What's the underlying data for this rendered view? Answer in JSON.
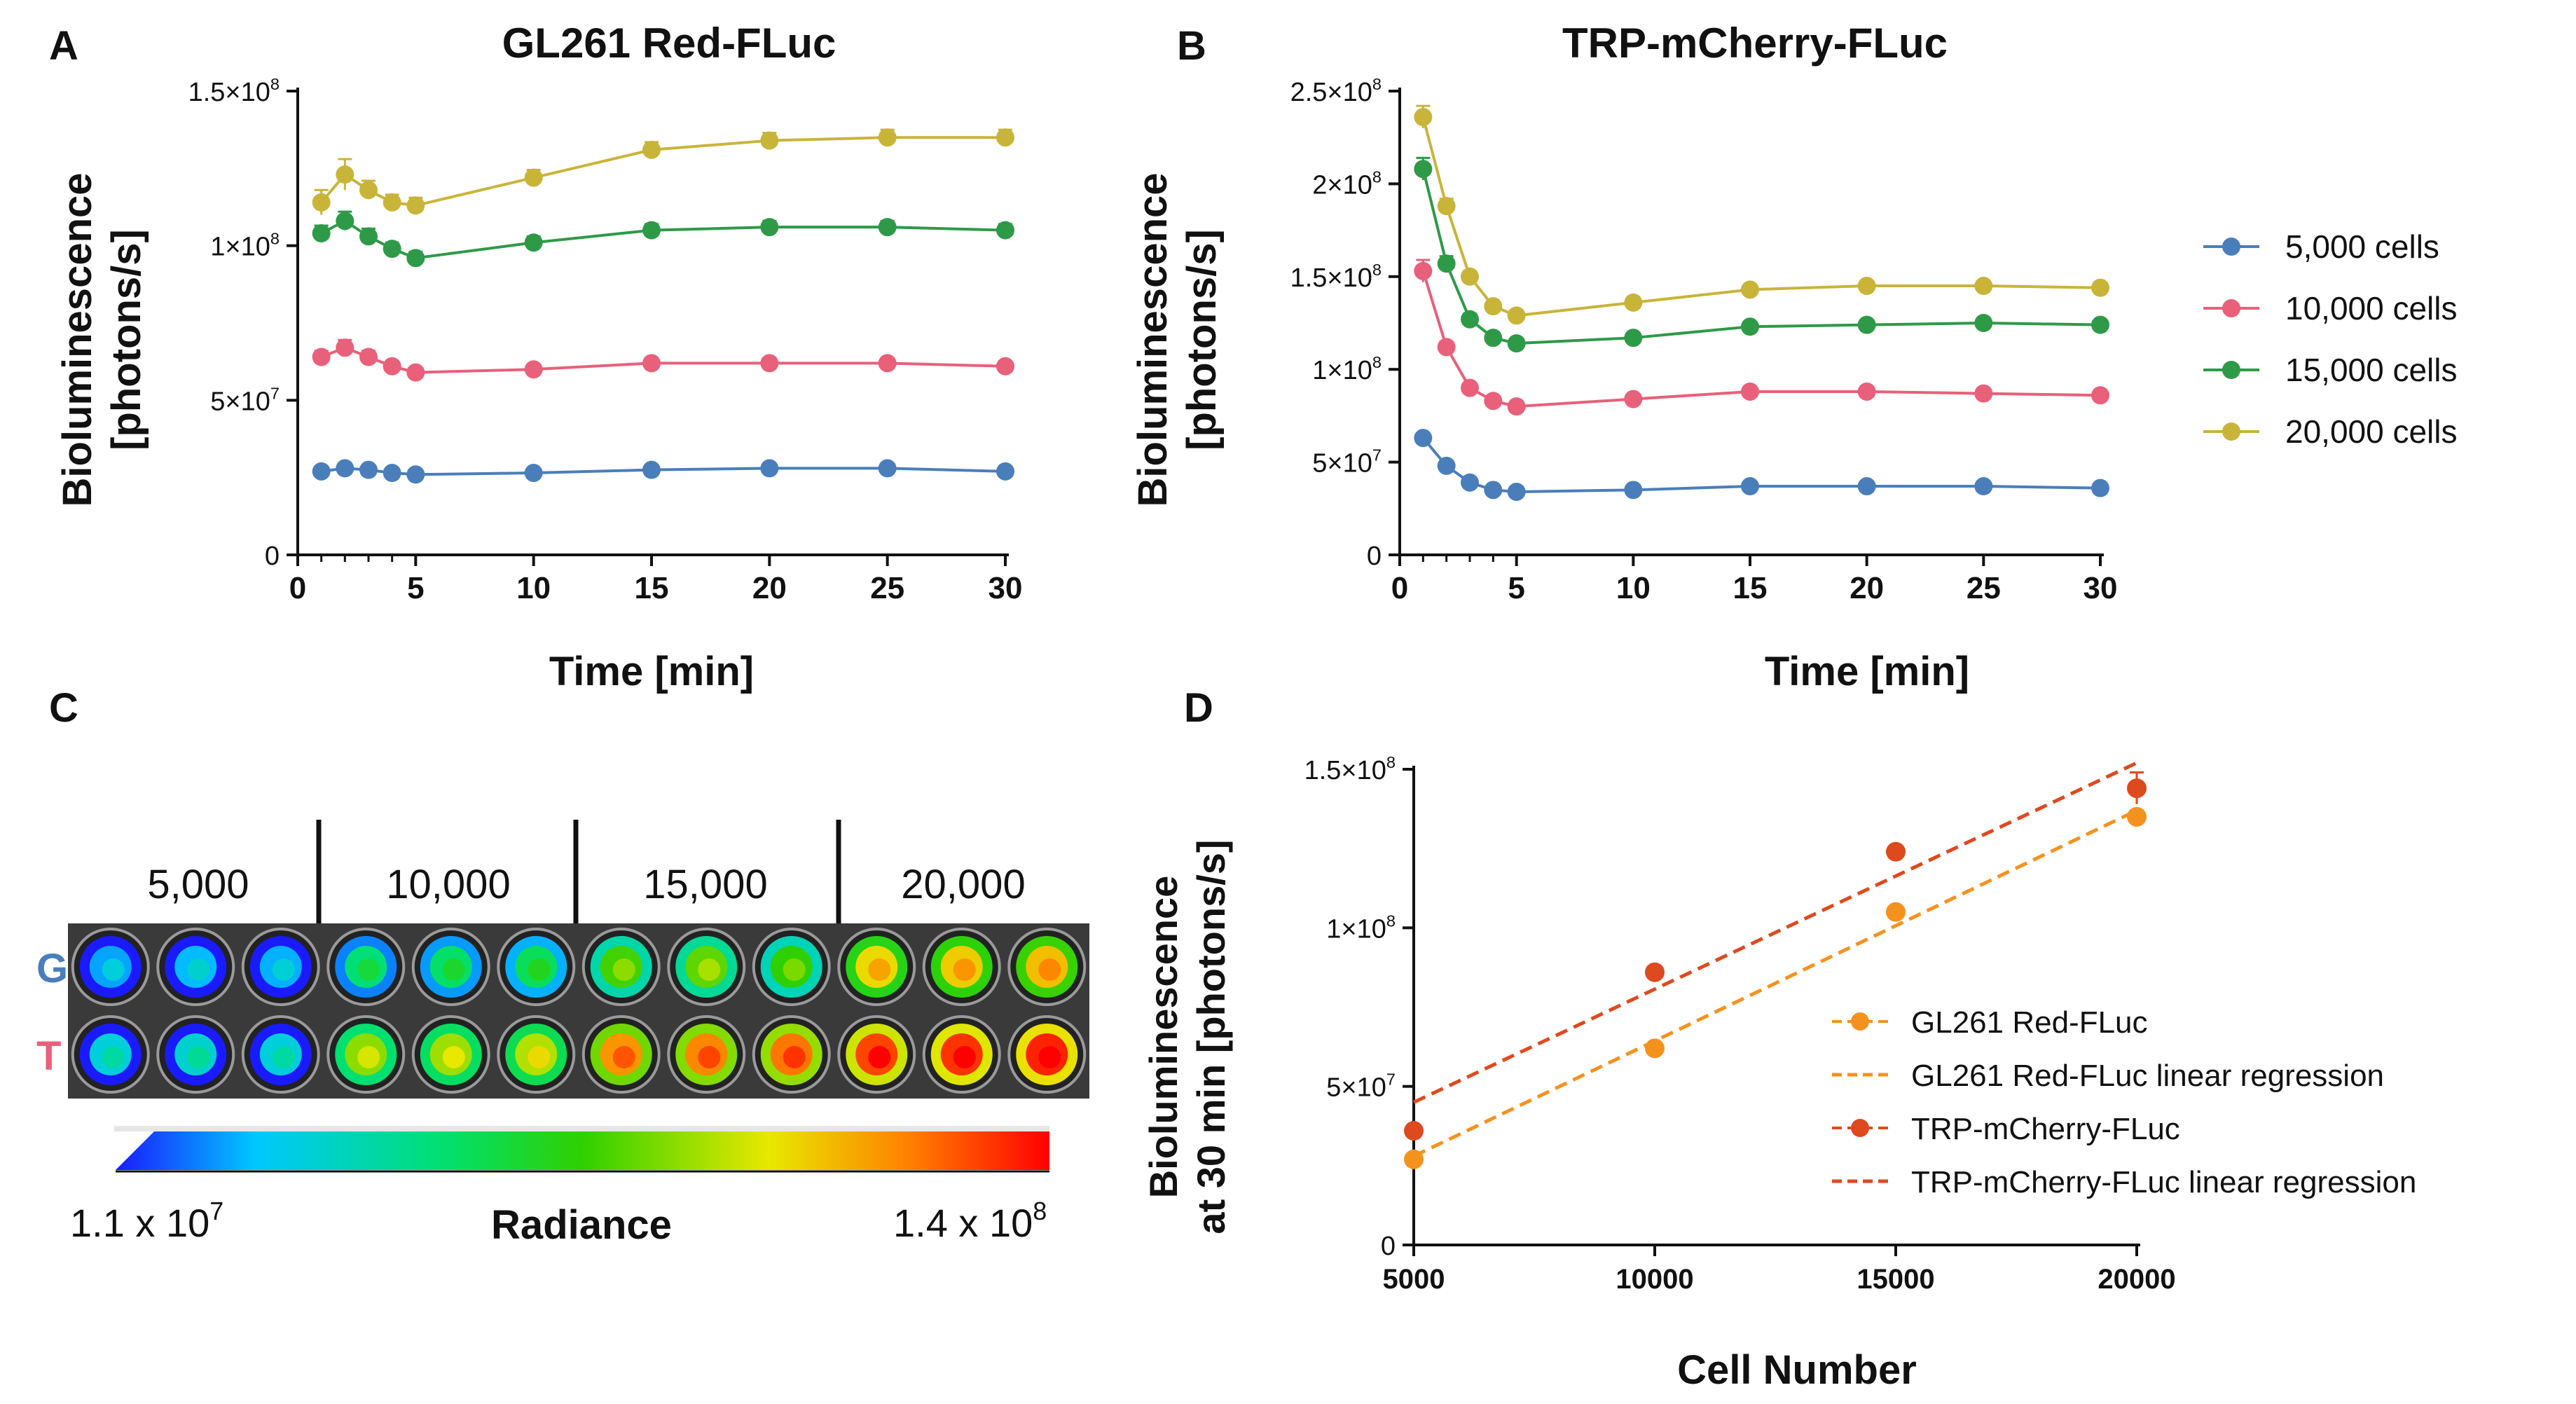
{
  "panel_letters": {
    "a": "A",
    "b": "B",
    "c": "C",
    "d": "D"
  },
  "legend_time": {
    "items": [
      {
        "label": "5,000 cells",
        "color": "#4a7ebb"
      },
      {
        "label": "10,000 cells",
        "color": "#e8607a"
      },
      {
        "label": "15,000 cells",
        "color": "#2e9a48"
      },
      {
        "label": "20,000 cells",
        "color": "#c9b43a"
      }
    ]
  },
  "chart_data": [
    {
      "id": "A",
      "type": "line",
      "title": "GL261 Red-FLuc",
      "xlabel": "Time [min]",
      "ylabel_line1": "Bioluminescence",
      "ylabel_line2": "[photons/s]",
      "xlim": [
        0,
        30
      ],
      "ylim": [
        0,
        150000000
      ],
      "xticks": [
        0,
        5,
        10,
        15,
        20,
        25,
        30
      ],
      "yticks": [
        {
          "value": 0,
          "mant": "0",
          "exp": ""
        },
        {
          "value": 50000000,
          "mant": "5×10",
          "exp": "7"
        },
        {
          "value": 100000000,
          "mant": "1×10",
          "exp": "8"
        },
        {
          "value": 150000000,
          "mant": "1.5×10",
          "exp": "8"
        }
      ],
      "x": [
        1,
        2,
        3,
        4,
        5,
        10,
        15,
        20,
        25,
        30
      ],
      "series": [
        {
          "name": "5,000 cells",
          "color": "#4a7ebb",
          "values": [
            27000000,
            28000000,
            27500000,
            26500000,
            26000000,
            26500000,
            27500000,
            28000000,
            28000000,
            27000000
          ],
          "err": [
            1500000,
            1500000,
            1200000,
            1200000,
            1000000,
            1000000,
            1000000,
            1000000,
            1000000,
            1000000
          ]
        },
        {
          "name": "10,000 cells",
          "color": "#e8607a",
          "values": [
            64000000,
            67000000,
            64000000,
            61000000,
            59000000,
            60000000,
            62000000,
            62000000,
            62000000,
            61000000
          ],
          "err": [
            2000000,
            2500000,
            2000000,
            1500000,
            1500000,
            1500000,
            1500000,
            1500000,
            1500000,
            1500000
          ]
        },
        {
          "name": "15,000 cells",
          "color": "#2e9a48",
          "values": [
            104000000,
            108000000,
            103000000,
            99000000,
            96000000,
            101000000,
            105000000,
            106000000,
            106000000,
            105000000
          ],
          "err": [
            2500000,
            3000000,
            2500000,
            2000000,
            2000000,
            2000000,
            2000000,
            2000000,
            2000000,
            2000000
          ]
        },
        {
          "name": "20,000 cells",
          "color": "#c9b43a",
          "values": [
            114000000,
            123000000,
            118000000,
            114000000,
            113000000,
            122000000,
            131000000,
            134000000,
            135000000,
            135000000
          ],
          "err": [
            4000000,
            5000000,
            3000000,
            2500000,
            2500000,
            2500000,
            2500000,
            2500000,
            2500000,
            2500000
          ]
        }
      ]
    },
    {
      "id": "B",
      "type": "line",
      "title": "TRP-mCherry-FLuc",
      "xlabel": "Time [min]",
      "ylabel_line1": "Bioluminescence",
      "ylabel_line2": "[photons/s]",
      "xlim": [
        0,
        30
      ],
      "ylim": [
        0,
        250000000
      ],
      "xticks": [
        0,
        5,
        10,
        15,
        20,
        25,
        30
      ],
      "yticks": [
        {
          "value": 0,
          "mant": "0",
          "exp": ""
        },
        {
          "value": 50000000,
          "mant": "5×10",
          "exp": "7"
        },
        {
          "value": 100000000,
          "mant": "1×10",
          "exp": "8"
        },
        {
          "value": 150000000,
          "mant": "1.5×10",
          "exp": "8"
        },
        {
          "value": 200000000,
          "mant": "2×10",
          "exp": "8"
        },
        {
          "value": 250000000,
          "mant": "2.5×10",
          "exp": "8"
        }
      ],
      "x": [
        1,
        2,
        3,
        4,
        5,
        10,
        15,
        20,
        25,
        30
      ],
      "series": [
        {
          "name": "5,000 cells",
          "color": "#4a7ebb",
          "values": [
            63000000,
            48000000,
            39000000,
            35000000,
            34000000,
            35000000,
            37000000,
            37000000,
            37000000,
            36000000
          ],
          "err": [
            2000000,
            1500000,
            1200000,
            1200000,
            1000000,
            1000000,
            1000000,
            1000000,
            1000000,
            1000000
          ]
        },
        {
          "name": "10,000 cells",
          "color": "#e8607a",
          "values": [
            153000000,
            112000000,
            90000000,
            83000000,
            80000000,
            84000000,
            88000000,
            88000000,
            87000000,
            86000000
          ],
          "err": [
            6000000,
            3000000,
            2500000,
            2000000,
            2000000,
            2000000,
            2000000,
            2000000,
            2000000,
            2000000
          ]
        },
        {
          "name": "15,000 cells",
          "color": "#2e9a48",
          "values": [
            208000000,
            157000000,
            127000000,
            117000000,
            114000000,
            117000000,
            123000000,
            124000000,
            125000000,
            124000000
          ],
          "err": [
            6000000,
            4000000,
            3000000,
            2500000,
            2500000,
            2500000,
            2500000,
            2500000,
            2500000,
            2500000
          ]
        },
        {
          "name": "20,000 cells",
          "color": "#c9b43a",
          "values": [
            236000000,
            188000000,
            150000000,
            134000000,
            129000000,
            136000000,
            143000000,
            145000000,
            145000000,
            144000000
          ],
          "err": [
            6000000,
            4000000,
            3000000,
            2500000,
            2500000,
            2500000,
            2500000,
            2500000,
            2500000,
            2500000
          ]
        }
      ]
    },
    {
      "id": "D",
      "type": "scatter",
      "xlabel": "Cell Number",
      "ylabel_line1": "Bioluminescence",
      "ylabel_line2": "at 30 min [photons/s]",
      "xlim": [
        5000,
        20000
      ],
      "ylim": [
        0,
        150000000
      ],
      "xticks": [
        5000,
        10000,
        15000,
        20000
      ],
      "yticks": [
        {
          "value": 0,
          "mant": "0",
          "exp": ""
        },
        {
          "value": 50000000,
          "mant": "5×10",
          "exp": "7"
        },
        {
          "value": 100000000,
          "mant": "1×10",
          "exp": "8"
        },
        {
          "value": 150000000,
          "mant": "1.5×10",
          "exp": "8"
        }
      ],
      "x": [
        5000,
        10000,
        15000,
        20000
      ],
      "series": [
        {
          "name": "GL261 Red-FLuc",
          "color": "#f5921e",
          "values": [
            27000000,
            62000000,
            105000000,
            135000000
          ],
          "err": [
            0,
            0,
            0,
            2000000
          ]
        },
        {
          "name": "TRP-mCherry-FLuc",
          "color": "#dd4a1e",
          "values": [
            36000000,
            86000000,
            124000000,
            144000000
          ],
          "err": [
            0,
            0,
            0,
            5000000
          ]
        }
      ],
      "regressions": [
        {
          "name": "GL261 Red-FLuc linear regression",
          "color": "#f5921e",
          "x0": 5000,
          "y0": 28000000,
          "x1": 20000,
          "y1": 137000000
        },
        {
          "name": "TRP-mCherry-FLuc linear regression",
          "color": "#dd4a1e",
          "x0": 5000,
          "y0": 45000000,
          "x1": 20000,
          "y1": 152000000
        }
      ],
      "legend": [
        {
          "label": "GL261 Red-FLuc",
          "color": "#f5921e",
          "kind": "marker"
        },
        {
          "label": "GL261 Red-FLuc linear regression",
          "color": "#f5921e",
          "kind": "dash"
        },
        {
          "label": "TRP-mCherry-FLuc",
          "color": "#dd4a1e",
          "kind": "marker"
        },
        {
          "label": "TRP-mCherry-FLuc linear regression",
          "color": "#dd4a1e",
          "kind": "dash"
        }
      ]
    }
  ],
  "imaging": {
    "groups": [
      "5,000",
      "10,000",
      "15,000",
      "20,000"
    ],
    "rows": [
      {
        "label": "G",
        "color": "#4a7ebb",
        "intensity": [
          0.12,
          0.14,
          0.13,
          0.34,
          0.36,
          0.38,
          0.52,
          0.55,
          0.5,
          0.72,
          0.74,
          0.76
        ]
      },
      {
        "label": "T",
        "color": "#e8607a",
        "intensity": [
          0.2,
          0.22,
          0.2,
          0.6,
          0.62,
          0.64,
          0.82,
          0.84,
          0.86,
          0.92,
          0.94,
          0.96
        ]
      }
    ],
    "colorbar": {
      "min_mant": "1.1 x 10",
      "min_exp": "7",
      "max_mant": "1.4 x 10",
      "max_exp": "8",
      "label": "Radiance"
    }
  }
}
